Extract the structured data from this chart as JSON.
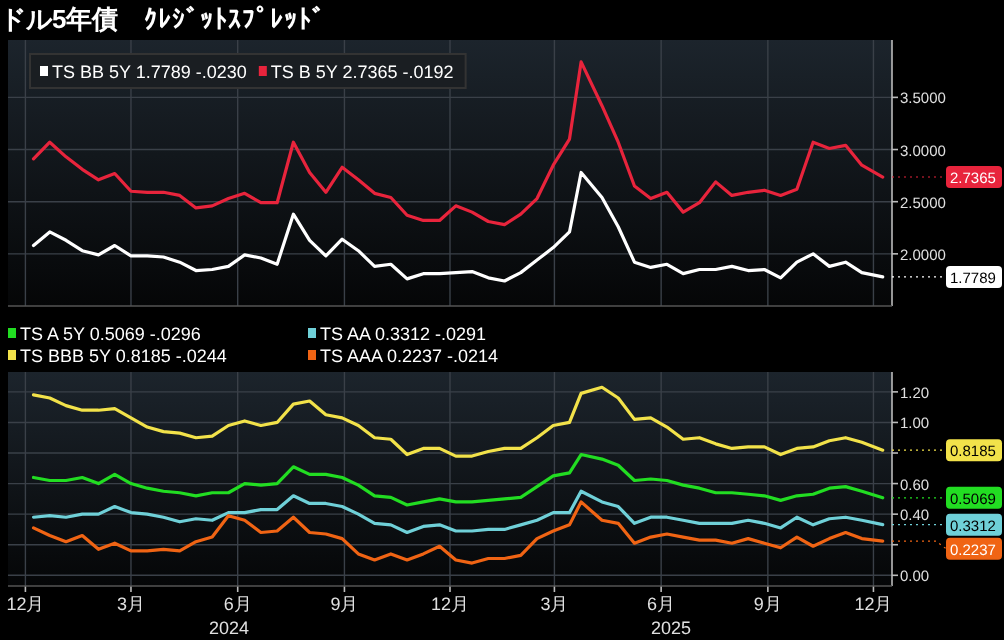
{
  "chart_data": [
    {
      "type": "line",
      "title": "ドル5年債　ｸﾚｼﾞｯﾄｽﾌﾟﾚｯﾄﾞ",
      "legend": "top left",
      "tick_labels": "y",
      "grid": true,
      "x": [
        "2023-12-23",
        "2024-01-06",
        "2024-01-20",
        "2024-02-03",
        "2024-02-17",
        "2024-03-02",
        "2024-03-16",
        "2024-03-30",
        "2024-04-13",
        "2024-04-27",
        "2024-05-11",
        "2024-05-25",
        "2024-06-08",
        "2024-06-22",
        "2024-07-06",
        "2024-07-20",
        "2024-08-03",
        "2024-08-17",
        "2024-08-31",
        "2024-09-14",
        "2024-09-28",
        "2024-10-12",
        "2024-10-26",
        "2024-11-09",
        "2024-11-23",
        "2024-12-07",
        "2024-12-21",
        "2025-01-04",
        "2025-01-18",
        "2025-02-01",
        "2025-02-15",
        "2025-03-01",
        "2025-03-15",
        "2025-03-29",
        "2025-04-08",
        "2025-04-26",
        "2025-05-10",
        "2025-05-24",
        "2025-06-07",
        "2025-06-21",
        "2025-07-05",
        "2025-07-19",
        "2025-08-02",
        "2025-08-16",
        "2025-08-30",
        "2025-09-13",
        "2025-09-27",
        "2025-10-11",
        "2025-10-25",
        "2025-11-08",
        "2025-11-22",
        "2025-12-06",
        "2025-12-24"
      ],
      "xlim": [
        "2023-12-01",
        "2026-01-01"
      ],
      "xticks": [
        {
          "value": "2023-12-16",
          "label": null
        },
        {
          "value": "2024-03-16",
          "label": null
        },
        {
          "value": "2024-06-16",
          "label": null
        },
        {
          "value": "2024-09-16",
          "label": null
        },
        {
          "value": "2024-12-16",
          "label": null
        },
        {
          "value": "2025-03-16",
          "label": null
        },
        {
          "value": "2025-06-16",
          "label": null
        },
        {
          "value": "2025-09-16",
          "label": null
        },
        {
          "value": "2025-12-16",
          "label": null
        }
      ],
      "ylim": [
        1.5,
        4.05
      ],
      "yticks": [
        {
          "value": 2,
          "label": "2.0000"
        },
        {
          "value": 2.5,
          "label": "2.5000"
        },
        {
          "value": 3,
          "label": "3.0000"
        },
        {
          "value": 3.5,
          "label": "3.5000"
        }
      ],
      "series": [
        {
          "name": "TS BB 5Y 1.7789 -.0230",
          "color": "#ffffff",
          "values": [
            2.08,
            2.21,
            2.13,
            2.03,
            1.99,
            2.08,
            1.98,
            1.98,
            1.97,
            1.92,
            1.84,
            1.85,
            1.88,
            1.99,
            1.96,
            1.9,
            2.38,
            2.13,
            1.98,
            2.14,
            2.03,
            1.88,
            1.9,
            1.76,
            1.81,
            1.81,
            1.82,
            1.83,
            1.77,
            1.74,
            1.82,
            1.94,
            2.06,
            2.21,
            2.78,
            2.54,
            2.26,
            1.92,
            1.87,
            1.9,
            1.81,
            1.85,
            1.85,
            1.88,
            1.84,
            1.85,
            1.77,
            1.92,
            2.0,
            1.88,
            1.92,
            1.82,
            1.7789
          ],
          "value_labels": [
            null,
            null,
            null,
            null,
            null,
            null,
            null,
            null,
            null,
            null,
            null,
            null,
            null,
            null,
            null,
            null,
            null,
            null,
            null,
            null,
            null,
            null,
            null,
            null,
            null,
            null,
            null,
            null,
            null,
            null,
            null,
            null,
            null,
            null,
            null,
            null,
            null,
            null,
            null,
            null,
            null,
            null,
            null,
            null,
            null,
            null,
            null,
            null,
            null,
            null,
            null,
            null,
            "1.7789"
          ]
        },
        {
          "name": "TS B 5Y 2.7365 -.0192",
          "color": "#e8243c",
          "values": [
            2.91,
            3.07,
            2.93,
            2.81,
            2.71,
            2.77,
            2.6,
            2.59,
            2.59,
            2.56,
            2.44,
            2.46,
            2.53,
            2.58,
            2.49,
            2.49,
            3.07,
            2.78,
            2.59,
            2.83,
            2.71,
            2.58,
            2.54,
            2.37,
            2.32,
            2.32,
            2.46,
            2.4,
            2.31,
            2.28,
            2.38,
            2.53,
            2.85,
            3.1,
            3.84,
            3.42,
            3.07,
            2.65,
            2.53,
            2.59,
            2.4,
            2.49,
            2.69,
            2.56,
            2.59,
            2.61,
            2.56,
            2.62,
            3.07,
            3.01,
            3.04,
            2.85,
            2.7365
          ],
          "value_labels": [
            null,
            null,
            null,
            null,
            null,
            null,
            null,
            null,
            null,
            null,
            null,
            null,
            null,
            null,
            null,
            null,
            null,
            null,
            null,
            null,
            null,
            null,
            null,
            null,
            null,
            null,
            null,
            null,
            null,
            null,
            null,
            null,
            null,
            null,
            null,
            null,
            null,
            null,
            null,
            null,
            null,
            null,
            null,
            null,
            null,
            null,
            null,
            null,
            null,
            null,
            null,
            null,
            "2.7365"
          ]
        }
      ]
    },
    {
      "type": "line",
      "legend": "top",
      "grid": true,
      "x": [
        "2023-12-23",
        "2024-01-06",
        "2024-01-20",
        "2024-02-03",
        "2024-02-17",
        "2024-03-02",
        "2024-03-16",
        "2024-03-30",
        "2024-04-13",
        "2024-04-27",
        "2024-05-11",
        "2024-05-25",
        "2024-06-08",
        "2024-06-22",
        "2024-07-06",
        "2024-07-20",
        "2024-08-03",
        "2024-08-17",
        "2024-08-31",
        "2024-09-14",
        "2024-09-28",
        "2024-10-12",
        "2024-10-26",
        "2024-11-09",
        "2024-11-23",
        "2024-12-07",
        "2024-12-21",
        "2025-01-04",
        "2025-01-18",
        "2025-02-01",
        "2025-02-15",
        "2025-03-01",
        "2025-03-15",
        "2025-03-29",
        "2025-04-08",
        "2025-04-26",
        "2025-05-10",
        "2025-05-24",
        "2025-06-07",
        "2025-06-21",
        "2025-07-05",
        "2025-07-19",
        "2025-08-02",
        "2025-08-16",
        "2025-08-30",
        "2025-09-13",
        "2025-09-27",
        "2025-10-11",
        "2025-10-25",
        "2025-11-08",
        "2025-11-22",
        "2025-12-06",
        "2025-12-24"
      ],
      "xlim": [
        "2023-12-01",
        "2026-01-01"
      ],
      "xticks": [
        {
          "value": "2023-12-16",
          "label": "12月"
        },
        {
          "value": "2024-03-16",
          "label": "3月"
        },
        {
          "value": "2024-06-16",
          "label": "6月"
        },
        {
          "value": "2024-09-16",
          "label": "9月"
        },
        {
          "value": "2024-12-16",
          "label": "12月"
        },
        {
          "value": "2025-03-16",
          "label": "3月"
        },
        {
          "value": "2025-06-16",
          "label": "6月"
        },
        {
          "value": "2025-09-16",
          "label": "9月"
        },
        {
          "value": "2025-12-16",
          "label": "12月"
        }
      ],
      "ylim": [
        -0.07,
        1.33
      ],
      "yticks": [
        {
          "value": 0,
          "label": "0.00"
        },
        {
          "value": 0.2,
          "label": null
        },
        {
          "value": 0.4,
          "label": "0.40"
        },
        {
          "value": 0.6,
          "label": "0.60"
        },
        {
          "value": 0.8,
          "label": null
        },
        {
          "value": 1,
          "label": "1.00"
        },
        {
          "value": 1.2,
          "label": "1.20"
        }
      ],
      "annotations": [
        "2024",
        "2025"
      ],
      "series": [
        {
          "name": "TS A 5Y 0.5069 -.0296",
          "color": "#22dd22",
          "values": [
            0.64,
            0.62,
            0.62,
            0.64,
            0.6,
            0.66,
            0.6,
            0.57,
            0.55,
            0.54,
            0.52,
            0.54,
            0.54,
            0.6,
            0.59,
            0.6,
            0.71,
            0.66,
            0.66,
            0.64,
            0.59,
            0.52,
            0.51,
            0.46,
            0.48,
            0.5,
            0.48,
            0.48,
            0.49,
            0.5,
            0.51,
            0.58,
            0.65,
            0.67,
            0.79,
            0.76,
            0.72,
            0.62,
            0.63,
            0.62,
            0.59,
            0.57,
            0.54,
            0.54,
            0.53,
            0.52,
            0.49,
            0.52,
            0.53,
            0.57,
            0.58,
            0.55,
            0.5069
          ],
          "value_labels": [
            null,
            null,
            null,
            null,
            null,
            null,
            null,
            null,
            null,
            null,
            null,
            null,
            null,
            null,
            null,
            null,
            null,
            null,
            null,
            null,
            null,
            null,
            null,
            null,
            null,
            null,
            null,
            null,
            null,
            null,
            null,
            null,
            null,
            null,
            null,
            null,
            null,
            null,
            null,
            null,
            null,
            null,
            null,
            null,
            null,
            null,
            null,
            null,
            null,
            null,
            null,
            null,
            "0.5069"
          ]
        },
        {
          "name": "TS AA 0.3312 -.0291",
          "color": "#6fd0d8",
          "values": [
            0.38,
            0.39,
            0.38,
            0.4,
            0.4,
            0.45,
            0.41,
            0.4,
            0.38,
            0.35,
            0.37,
            0.36,
            0.41,
            0.41,
            0.43,
            0.43,
            0.52,
            0.47,
            0.47,
            0.45,
            0.4,
            0.34,
            0.33,
            0.28,
            0.32,
            0.33,
            0.29,
            0.29,
            0.3,
            0.3,
            0.33,
            0.36,
            0.41,
            0.41,
            0.55,
            0.48,
            0.45,
            0.34,
            0.38,
            0.38,
            0.36,
            0.34,
            0.34,
            0.34,
            0.36,
            0.34,
            0.31,
            0.38,
            0.33,
            0.37,
            0.38,
            0.36,
            0.3312
          ],
          "value_labels": [
            null,
            null,
            null,
            null,
            null,
            null,
            null,
            null,
            null,
            null,
            null,
            null,
            null,
            null,
            null,
            null,
            null,
            null,
            null,
            null,
            null,
            null,
            null,
            null,
            null,
            null,
            null,
            null,
            null,
            null,
            null,
            null,
            null,
            null,
            null,
            null,
            null,
            null,
            null,
            null,
            null,
            null,
            null,
            null,
            null,
            null,
            null,
            null,
            null,
            null,
            null,
            null,
            "0.3312"
          ]
        },
        {
          "name": "TS BBB 5Y 0.8185 -.0244",
          "color": "#f2e24a",
          "values": [
            1.18,
            1.16,
            1.11,
            1.08,
            1.08,
            1.09,
            1.03,
            0.97,
            0.94,
            0.93,
            0.9,
            0.91,
            0.98,
            1.01,
            0.98,
            1.0,
            1.12,
            1.14,
            1.05,
            1.03,
            0.98,
            0.9,
            0.89,
            0.79,
            0.83,
            0.83,
            0.78,
            0.78,
            0.81,
            0.83,
            0.83,
            0.9,
            0.98,
            1.0,
            1.19,
            1.23,
            1.16,
            1.02,
            1.03,
            0.97,
            0.89,
            0.9,
            0.86,
            0.83,
            0.84,
            0.84,
            0.79,
            0.83,
            0.84,
            0.88,
            0.9,
            0.87,
            0.8185
          ],
          "value_labels": [
            null,
            null,
            null,
            null,
            null,
            null,
            null,
            null,
            null,
            null,
            null,
            null,
            null,
            null,
            null,
            null,
            null,
            null,
            null,
            null,
            null,
            null,
            null,
            null,
            null,
            null,
            null,
            null,
            null,
            null,
            null,
            null,
            null,
            null,
            null,
            null,
            null,
            null,
            null,
            null,
            null,
            null,
            null,
            null,
            null,
            null,
            null,
            null,
            null,
            null,
            null,
            null,
            "0.8185"
          ]
        },
        {
          "name": "TS AAA 0.2237 -.0214",
          "color": "#f06414",
          "values": [
            0.31,
            0.26,
            0.22,
            0.26,
            0.17,
            0.21,
            0.16,
            0.16,
            0.17,
            0.16,
            0.22,
            0.25,
            0.39,
            0.36,
            0.28,
            0.29,
            0.38,
            0.28,
            0.27,
            0.24,
            0.14,
            0.1,
            0.14,
            0.1,
            0.14,
            0.19,
            0.1,
            0.08,
            0.11,
            0.11,
            0.13,
            0.24,
            0.29,
            0.33,
            0.48,
            0.36,
            0.34,
            0.21,
            0.25,
            0.27,
            0.25,
            0.23,
            0.23,
            0.21,
            0.24,
            0.21,
            0.18,
            0.25,
            0.19,
            0.24,
            0.28,
            0.24,
            0.2237
          ],
          "value_labels": [
            null,
            null,
            null,
            null,
            null,
            null,
            null,
            null,
            null,
            null,
            null,
            null,
            null,
            null,
            null,
            null,
            null,
            null,
            null,
            null,
            null,
            null,
            null,
            null,
            null,
            null,
            null,
            null,
            null,
            null,
            null,
            null,
            null,
            null,
            null,
            null,
            null,
            null,
            null,
            null,
            null,
            null,
            null,
            null,
            null,
            null,
            null,
            null,
            null,
            null,
            null,
            null,
            "0.2237"
          ]
        }
      ]
    }
  ]
}
